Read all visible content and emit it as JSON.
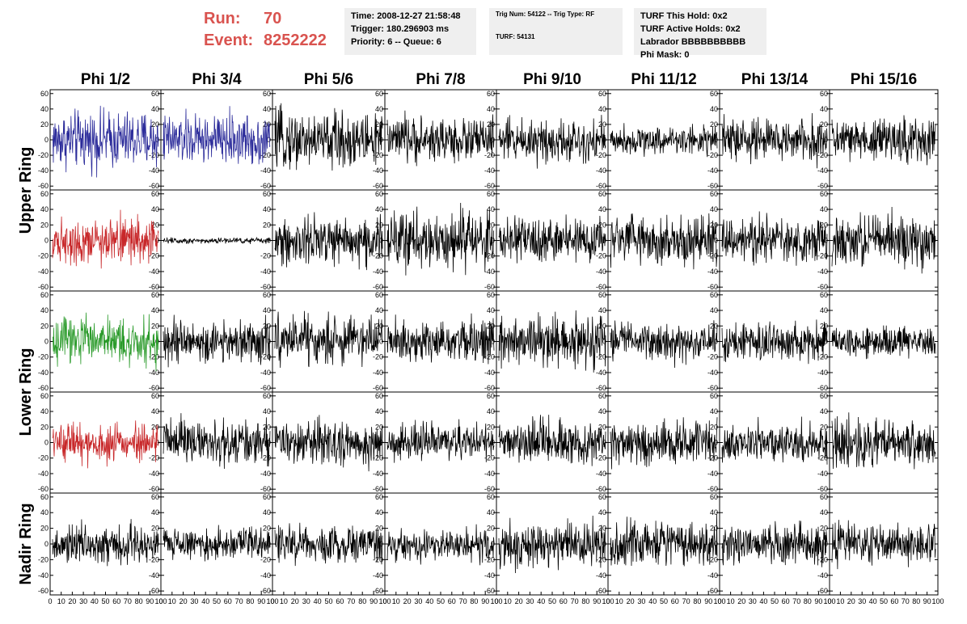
{
  "header": {
    "run_label": "Run:",
    "run_value": "70",
    "event_label": "Event:",
    "event_value": "8252222",
    "accent_color": "#d9534f",
    "box1": [
      "Time: 2008-12-27 21:58:48",
      "Trigger: 180.296903 ms",
      "Priority: 6 -- Queue: 6"
    ],
    "box2": [
      "Trig Num: 54122 -- Trig Type: RF",
      "TURF: 54131"
    ],
    "box3": [
      "TURF This Hold: 0x2",
      "TURF Active Holds: 0x2",
      "Labrador BBBBBBBBBB",
      "Phi Mask: 0"
    ]
  },
  "chart_data": {
    "type": "line",
    "columns": [
      "Phi 1/2",
      "Phi 3/4",
      "Phi 5/6",
      "Phi 7/8",
      "Phi 9/10",
      "Phi 11/12",
      "Phi 13/14",
      "Phi 15/16"
    ],
    "row_groups": [
      {
        "label": "Upper Ring",
        "rows": 2
      },
      {
        "label": "Lower Ring",
        "rows": 2
      },
      {
        "label": "Nadir Ring",
        "rows": 1
      }
    ],
    "ylim": [
      -65,
      65
    ],
    "yticks": [
      -60,
      -40,
      -20,
      0,
      20,
      40,
      60
    ],
    "xlim": [
      0,
      100
    ],
    "xticks": [
      0,
      10,
      20,
      30,
      40,
      50,
      60,
      70,
      80,
      90,
      100
    ],
    "samples_per_trace": 260,
    "series_colors": {
      "default": "#000000",
      "blue": "#2b2b9a",
      "red": "#c8282a",
      "green": "#2a9a2a"
    },
    "traces": [
      {
        "row": 0,
        "col": 0,
        "color": "blue",
        "amplitude": 18
      },
      {
        "row": 0,
        "col": 1,
        "color": "blue",
        "amplitude": 16
      },
      {
        "row": 0,
        "col": 2,
        "color": "default",
        "amplitude": 18
      },
      {
        "row": 0,
        "col": 3,
        "color": "default",
        "amplitude": 14
      },
      {
        "row": 0,
        "col": 4,
        "color": "default",
        "amplitude": 14
      },
      {
        "row": 0,
        "col": 5,
        "color": "default",
        "amplitude": 9
      },
      {
        "row": 0,
        "col": 6,
        "color": "default",
        "amplitude": 14
      },
      {
        "row": 0,
        "col": 7,
        "color": "default",
        "amplitude": 14
      },
      {
        "row": 1,
        "col": 0,
        "color": "red",
        "amplitude": 14
      },
      {
        "row": 1,
        "col": 1,
        "color": "default",
        "amplitude": 2
      },
      {
        "row": 1,
        "col": 2,
        "color": "default",
        "amplitude": 16
      },
      {
        "row": 1,
        "col": 3,
        "color": "default",
        "amplitude": 18
      },
      {
        "row": 1,
        "col": 4,
        "color": "default",
        "amplitude": 14
      },
      {
        "row": 1,
        "col": 5,
        "color": "default",
        "amplitude": 16
      },
      {
        "row": 1,
        "col": 6,
        "color": "default",
        "amplitude": 14
      },
      {
        "row": 1,
        "col": 7,
        "color": "default",
        "amplitude": 16
      },
      {
        "row": 2,
        "col": 0,
        "color": "green",
        "amplitude": 14
      },
      {
        "row": 2,
        "col": 1,
        "color": "default",
        "amplitude": 14
      },
      {
        "row": 2,
        "col": 2,
        "color": "default",
        "amplitude": 16
      },
      {
        "row": 2,
        "col": 3,
        "color": "default",
        "amplitude": 14
      },
      {
        "row": 2,
        "col": 4,
        "color": "default",
        "amplitude": 16
      },
      {
        "row": 2,
        "col": 5,
        "color": "default",
        "amplitude": 12
      },
      {
        "row": 2,
        "col": 6,
        "color": "default",
        "amplitude": 12
      },
      {
        "row": 2,
        "col": 7,
        "color": "default",
        "amplitude": 10
      },
      {
        "row": 3,
        "col": 0,
        "color": "red",
        "amplitude": 12
      },
      {
        "row": 3,
        "col": 1,
        "color": "default",
        "amplitude": 14
      },
      {
        "row": 3,
        "col": 2,
        "color": "default",
        "amplitude": 14
      },
      {
        "row": 3,
        "col": 3,
        "color": "default",
        "amplitude": 12
      },
      {
        "row": 3,
        "col": 4,
        "color": "default",
        "amplitude": 14
      },
      {
        "row": 3,
        "col": 5,
        "color": "default",
        "amplitude": 14
      },
      {
        "row": 3,
        "col": 6,
        "color": "default",
        "amplitude": 12
      },
      {
        "row": 3,
        "col": 7,
        "color": "default",
        "amplitude": 14
      },
      {
        "row": 4,
        "col": 0,
        "color": "default",
        "amplitude": 12
      },
      {
        "row": 4,
        "col": 1,
        "color": "default",
        "amplitude": 10
      },
      {
        "row": 4,
        "col": 2,
        "color": "default",
        "amplitude": 12
      },
      {
        "row": 4,
        "col": 3,
        "color": "default",
        "amplitude": 10
      },
      {
        "row": 4,
        "col": 4,
        "color": "default",
        "amplitude": 14
      },
      {
        "row": 4,
        "col": 5,
        "color": "default",
        "amplitude": 14
      },
      {
        "row": 4,
        "col": 6,
        "color": "default",
        "amplitude": 12
      },
      {
        "row": 4,
        "col": 7,
        "color": "default",
        "amplitude": 12
      }
    ]
  }
}
